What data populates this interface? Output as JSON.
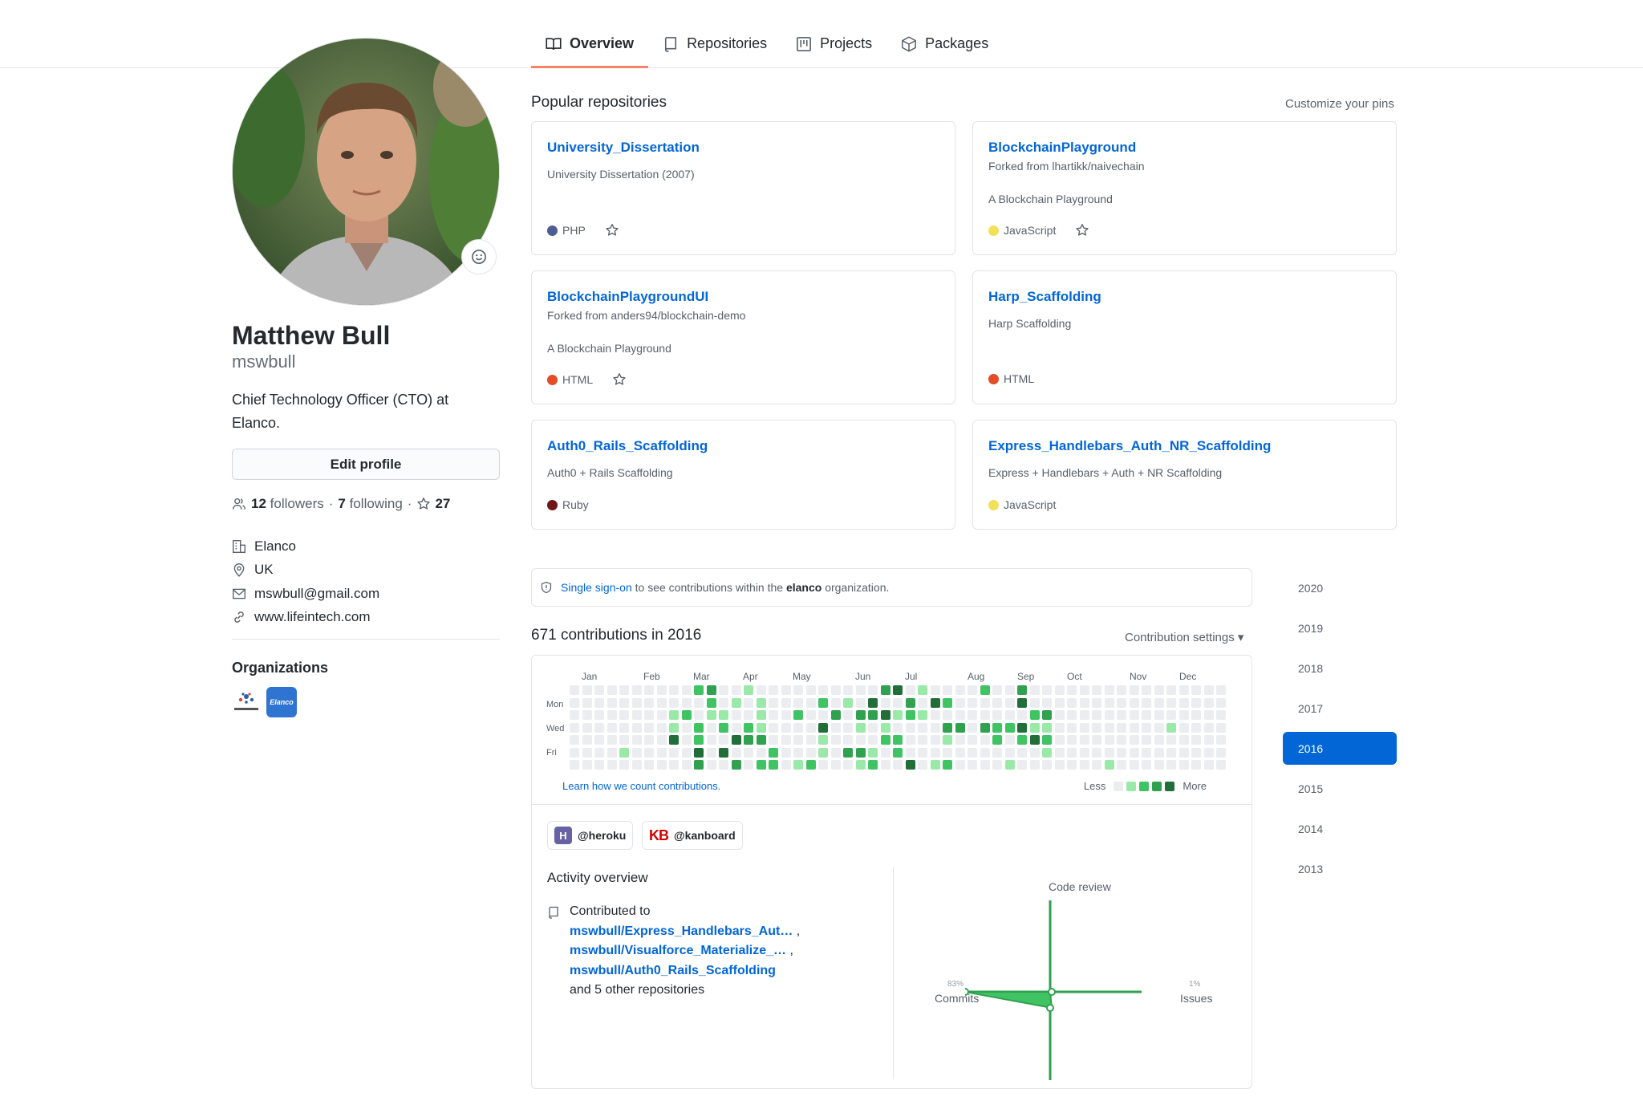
{
  "nav": {
    "tabs": [
      {
        "label": "Overview",
        "icon": "book-icon",
        "active": true
      },
      {
        "label": "Repositories",
        "icon": "repo-icon",
        "active": false
      },
      {
        "label": "Projects",
        "icon": "project-icon",
        "active": false
      },
      {
        "label": "Packages",
        "icon": "package-icon",
        "active": false
      }
    ]
  },
  "profile": {
    "name": "Matthew Bull",
    "username": "mswbull",
    "bio": "Chief Technology Officer (CTO) at Elanco.",
    "edit_label": "Edit profile",
    "followers_count": "12",
    "followers_label": "followers",
    "sep": "·",
    "following_count": "7",
    "following_label": "following",
    "stars_count": "27",
    "company": "Elanco",
    "location": "UK",
    "email": "mswbull@gmail.com",
    "website": "www.lifeintech.com",
    "organizations_title": "Organizations",
    "org_logo_text": "Elanco"
  },
  "popular": {
    "title": "Popular repositories",
    "customize_label": "Customize your pins",
    "repos": [
      {
        "name": "University_Dissertation",
        "forked": "",
        "description": "University Dissertation (2007)",
        "language": "PHP",
        "lang_color": "#4F5D95"
      },
      {
        "name": "BlockchainPlayground",
        "forked": "Forked from lhartikk/naivechain",
        "description": "A Blockchain Playground",
        "language": "JavaScript",
        "lang_color": "#f1e05a"
      },
      {
        "name": "BlockchainPlaygroundUI",
        "forked": "Forked from anders94/blockchain-demo",
        "description": "A Blockchain Playground",
        "language": "HTML",
        "lang_color": "#e34c26"
      },
      {
        "name": "Harp_Scaffolding",
        "forked": "",
        "description": "Harp Scaffolding",
        "language": "HTML",
        "lang_color": "#e34c26"
      },
      {
        "name": "Auth0_Rails_Scaffolding",
        "forked": "",
        "description": "Auth0 + Rails Scaffolding",
        "language": "Ruby",
        "lang_color": "#701516"
      },
      {
        "name": "Express_Handlebars_Auth_NR_Scaffolding",
        "forked": "",
        "description": "Express + Handlebars + Auth + NR Scaffolding",
        "language": "JavaScript",
        "lang_color": "#f1e05a"
      }
    ]
  },
  "sso": {
    "link": "Single sign-on",
    "text_before_org": "to see contributions within the",
    "org": "elanco",
    "text_after_org": "organization."
  },
  "contributions": {
    "title": "671 contributions in 2016",
    "settings_label": "Contribution settings ▾",
    "months": [
      "Jan",
      "Feb",
      "Mar",
      "Apr",
      "May",
      "Jun",
      "Jul",
      "Aug",
      "Sep",
      "Oct",
      "Nov",
      "Dec"
    ],
    "weekdays": [
      "Mon",
      "Wed",
      "Fri"
    ],
    "learn_label": "Learn how we count contributions.",
    "legend_less": "Less",
    "legend_more": "More",
    "colors": [
      "#ebedf0",
      "#9be9a8",
      "#40c463",
      "#30a14e",
      "#216e39"
    ]
  },
  "activity": {
    "orgs": [
      {
        "label": "@heroku",
        "icon": "heroku-icon"
      },
      {
        "label": "@kanboard",
        "icon": "kanboard-icon"
      }
    ],
    "title": "Activity overview",
    "contributed_to": "Contributed to",
    "repos": [
      "mswbull/Express_Handlebars_Aut…",
      "mswbull/Visualforce_Materialize_…",
      "mswbull/Auth0_Rails_Scaffolding"
    ],
    "comma": ",",
    "others": "and 5 other repositories",
    "chart": {
      "code_review_label": "Code review",
      "commits_label": "Commits",
      "commits_pct": "83%",
      "issues_label": "Issues",
      "issues_pct": "1%"
    }
  },
  "years": [
    "2020",
    "2019",
    "2018",
    "2017",
    "2016",
    "2015",
    "2014",
    "2013"
  ],
  "selected_year": "2016"
}
